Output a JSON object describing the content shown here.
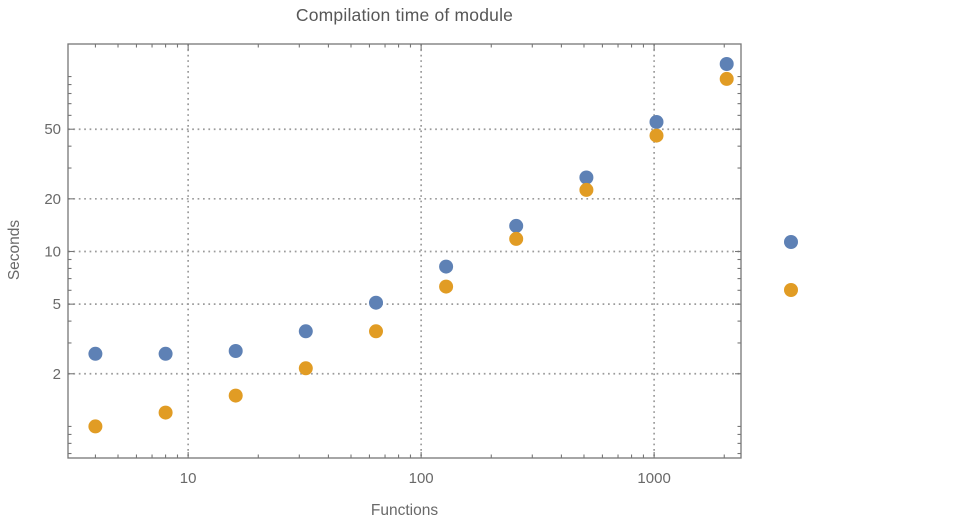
{
  "chart_data": {
    "type": "scatter",
    "title": "Compilation time of module",
    "xlabel": "Functions",
    "ylabel": "Seconds",
    "x_scale": "log",
    "y_scale": "log",
    "xlim": [
      3.05,
      2360
    ],
    "ylim": [
      0.66,
      153.5
    ],
    "x_ticks": [
      10,
      100,
      1000
    ],
    "x_tick_labels": [
      "10",
      "100",
      "1000"
    ],
    "y_ticks": [
      2,
      5,
      10,
      20,
      50
    ],
    "y_tick_labels": [
      "2",
      "5",
      "10",
      "20",
      "50"
    ],
    "x_minor_ticks": [
      4,
      5,
      6,
      7,
      8,
      9,
      20,
      30,
      40,
      50,
      60,
      70,
      80,
      90,
      200,
      300,
      400,
      500,
      600,
      700,
      800,
      900,
      2000
    ],
    "y_minor_ticks": [
      0.7,
      0.8,
      0.9,
      1,
      3,
      4,
      6,
      7,
      8,
      9,
      30,
      40,
      60,
      70,
      80,
      90,
      100
    ],
    "grid": {
      "style": "dotted",
      "color": "#9b9b9b",
      "x_values": [
        10,
        100,
        1000
      ],
      "y_values": [
        2,
        5,
        10,
        20,
        50
      ]
    },
    "series": [
      {
        "name": "blue",
        "color": "#5e81b5",
        "x": [
          4,
          8,
          16,
          32,
          64,
          128,
          256,
          512,
          1024,
          2048
        ],
        "y": [
          2.6,
          2.6,
          2.7,
          3.5,
          5.1,
          8.2,
          14,
          26.5,
          55,
          118
        ]
      },
      {
        "name": "orange",
        "color": "#e19c24",
        "x": [
          4,
          8,
          16,
          32,
          64,
          128,
          256,
          512,
          1024,
          2048
        ],
        "y": [
          1.0,
          1.2,
          1.5,
          2.15,
          3.5,
          6.3,
          11.8,
          22.5,
          46,
          97
        ]
      }
    ],
    "marker": {
      "shape": "circle",
      "diameter": 14
    },
    "legend": {
      "position": "right-outside",
      "entries": [
        {
          "label": "",
          "color": "#5e81b5"
        },
        {
          "label": "",
          "color": "#e19c24"
        }
      ]
    }
  }
}
